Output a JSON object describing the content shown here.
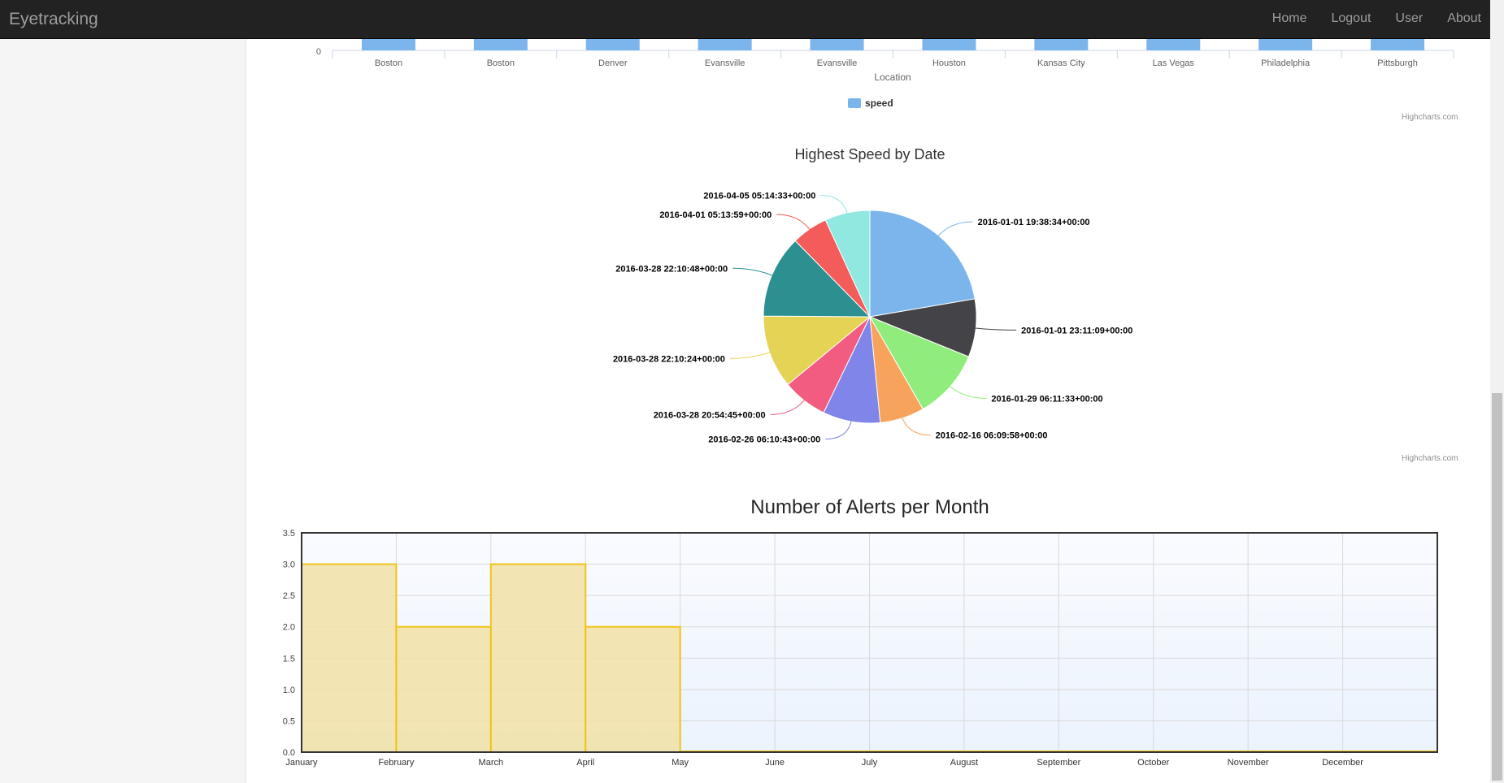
{
  "app": {
    "brand": "Eyetracking"
  },
  "nav": {
    "items": [
      "Home",
      "Logout",
      "User",
      "About"
    ]
  },
  "charts": {
    "location_bar": {
      "categories": [
        "Boston",
        "Boston",
        "Denver",
        "Evansville",
        "Evansville",
        "Houston",
        "Kansas City",
        "Las Vegas",
        "Philadelphia",
        "Pittsburgh"
      ],
      "xlabel": "Location",
      "y_tick_zero": "0",
      "legend": "speed",
      "series_color": "#7cb5ec",
      "credit": "Highcharts.com"
    },
    "speed_pie": {
      "title": "Highest Speed by Date",
      "credit": "Highcharts.com"
    },
    "alerts_histogram": {
      "title": "Number of Alerts per Month"
    }
  },
  "chart_data": [
    {
      "type": "bar",
      "categories": [
        "Boston",
        "Boston",
        "Denver",
        "Evansville",
        "Evansville",
        "Houston",
        "Kansas City",
        "Las Vegas",
        "Philadelphia",
        "Pittsburgh"
      ],
      "series": [
        {
          "name": "speed",
          "color": "#7cb5ec"
        }
      ],
      "xlabel": "Location",
      "note": "only baseline (0) of the bar chart is visible"
    },
    {
      "type": "pie",
      "title": "Highest Speed by Date",
      "slices": [
        {
          "label": "2016-01-01 19:38:34+00:00",
          "value": 21.5,
          "color": "#7cb5ec"
        },
        {
          "label": "2016-01-01 23:11:09+00:00",
          "value": 8.5,
          "color": "#434348"
        },
        {
          "label": "2016-01-29 06:11:33+00:00",
          "value": 10.2,
          "color": "#90ed7d"
        },
        {
          "label": "2016-02-16 06:09:58+00:00",
          "value": 6.5,
          "color": "#f7a35c"
        },
        {
          "label": "2016-02-26 06:10:43+00:00",
          "value": 8.4,
          "color": "#8085e9"
        },
        {
          "label": "2016-03-28 20:54:45+00:00",
          "value": 6.6,
          "color": "#f15c80"
        },
        {
          "label": "2016-03-28 22:10:24+00:00",
          "value": 10.7,
          "color": "#e4d354"
        },
        {
          "label": "2016-03-28 22:10:48+00:00",
          "value": 12.1,
          "color": "#2b908f"
        },
        {
          "label": "2016-04-01 05:13:59+00:00",
          "value": 5.3,
          "color": "#f45b5b"
        },
        {
          "label": "2016-04-05 05:14:33+00:00",
          "value": 6.6,
          "color": "#91e8e1"
        }
      ]
    },
    {
      "type": "bar",
      "title": "Number of Alerts per Month",
      "categories": [
        "January",
        "February",
        "March",
        "April",
        "May",
        "June",
        "July",
        "August",
        "September",
        "October",
        "November",
        "December"
      ],
      "values": [
        3,
        2,
        3,
        2,
        0,
        0,
        0,
        0,
        0,
        0,
        0,
        0
      ],
      "ylim": [
        0,
        3.5
      ],
      "yticks": [
        "0.0",
        "0.5",
        "1.0",
        "1.5",
        "2.0",
        "2.5",
        "3.0",
        "3.5"
      ],
      "bar_color": "#f2e1a6",
      "bar_edge_color": "#f0c419",
      "grid": true
    }
  ]
}
